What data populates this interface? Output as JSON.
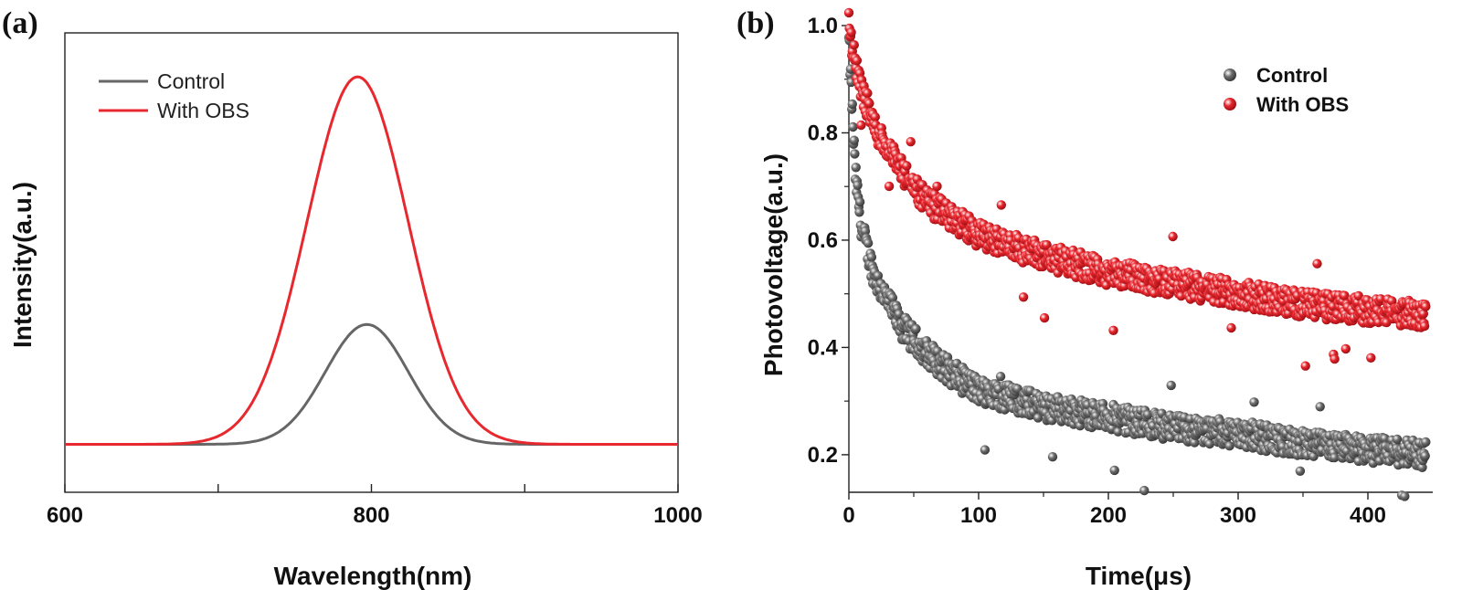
{
  "chart_data": [
    {
      "panel": "(a)",
      "type": "line",
      "title": "",
      "xlabel": "Wavelength(nm)",
      "ylabel": "Intensity(a.u.)",
      "xlim": [
        600,
        1000
      ],
      "ylim": [
        0,
        1.15
      ],
      "xticks": [
        600,
        700,
        800,
        900,
        1000
      ],
      "xtick_labels": [
        "600",
        "800",
        "1000"
      ],
      "yticks_shown": false,
      "legend_position": "top-left",
      "series": [
        {
          "name": "Control",
          "color": "#666666",
          "shape": "gaussian",
          "baseline": 0.12,
          "peak_x": 797,
          "peak_y": 0.42,
          "sigma": 27
        },
        {
          "name": "With OBS",
          "color": "#e8282f",
          "shape": "gaussian",
          "baseline": 0.12,
          "peak_x": 791,
          "peak_y": 1.04,
          "sigma": 33
        }
      ]
    },
    {
      "panel": "(b)",
      "type": "scatter",
      "title": "",
      "xlabel": "Time(μs)",
      "ylabel": "Photovoltage(a.u.)",
      "xlim": [
        0,
        450
      ],
      "ylim": [
        0.13,
        1.0
      ],
      "xticks": [
        0,
        100,
        200,
        300,
        400
      ],
      "yticks": [
        0.2,
        0.4,
        0.6,
        0.8,
        1.0
      ],
      "ytick_labels": [
        "0.2",
        "0.4",
        "0.6",
        "0.8",
        "1.0"
      ],
      "legend_position": "top-right",
      "series": [
        {
          "name": "Control",
          "color": "#707070",
          "model": "biexponential",
          "points": [
            [
              0,
              0.97
            ],
            [
              5,
              0.72
            ],
            [
              10,
              0.62
            ],
            [
              20,
              0.53
            ],
            [
              40,
              0.44
            ],
            [
              60,
              0.39
            ],
            [
              80,
              0.35
            ],
            [
              100,
              0.32
            ],
            [
              150,
              0.29
            ],
            [
              200,
              0.27
            ],
            [
              250,
              0.25
            ],
            [
              300,
              0.24
            ],
            [
              350,
              0.22
            ],
            [
              400,
              0.21
            ],
            [
              445,
              0.2
            ]
          ]
        },
        {
          "name": "With OBS",
          "color": "#e8282f",
          "model": "biexponential",
          "points": [
            [
              0,
              1.0
            ],
            [
              5,
              0.93
            ],
            [
              10,
              0.88
            ],
            [
              20,
              0.81
            ],
            [
              40,
              0.73
            ],
            [
              60,
              0.67
            ],
            [
              80,
              0.64
            ],
            [
              100,
              0.61
            ],
            [
              150,
              0.57
            ],
            [
              200,
              0.54
            ],
            [
              250,
              0.52
            ],
            [
              300,
              0.5
            ],
            [
              350,
              0.48
            ],
            [
              400,
              0.47
            ],
            [
              445,
              0.46
            ]
          ]
        }
      ]
    }
  ]
}
